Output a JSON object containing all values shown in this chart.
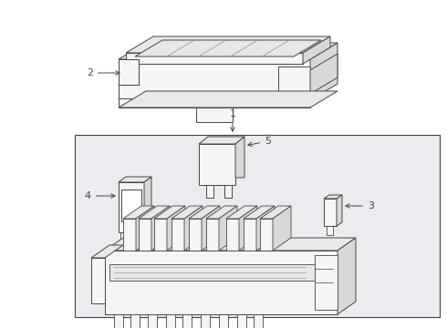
{
  "bg_color": "#ffffff",
  "box_bg": "#eaecf0",
  "line_color": "#444444",
  "line_color_light": "#888888",
  "fill_white": "#ffffff",
  "fill_light": "#f5f5f5",
  "fill_mid": "#e8e8e8",
  "fill_dark": "#d8d8d8"
}
